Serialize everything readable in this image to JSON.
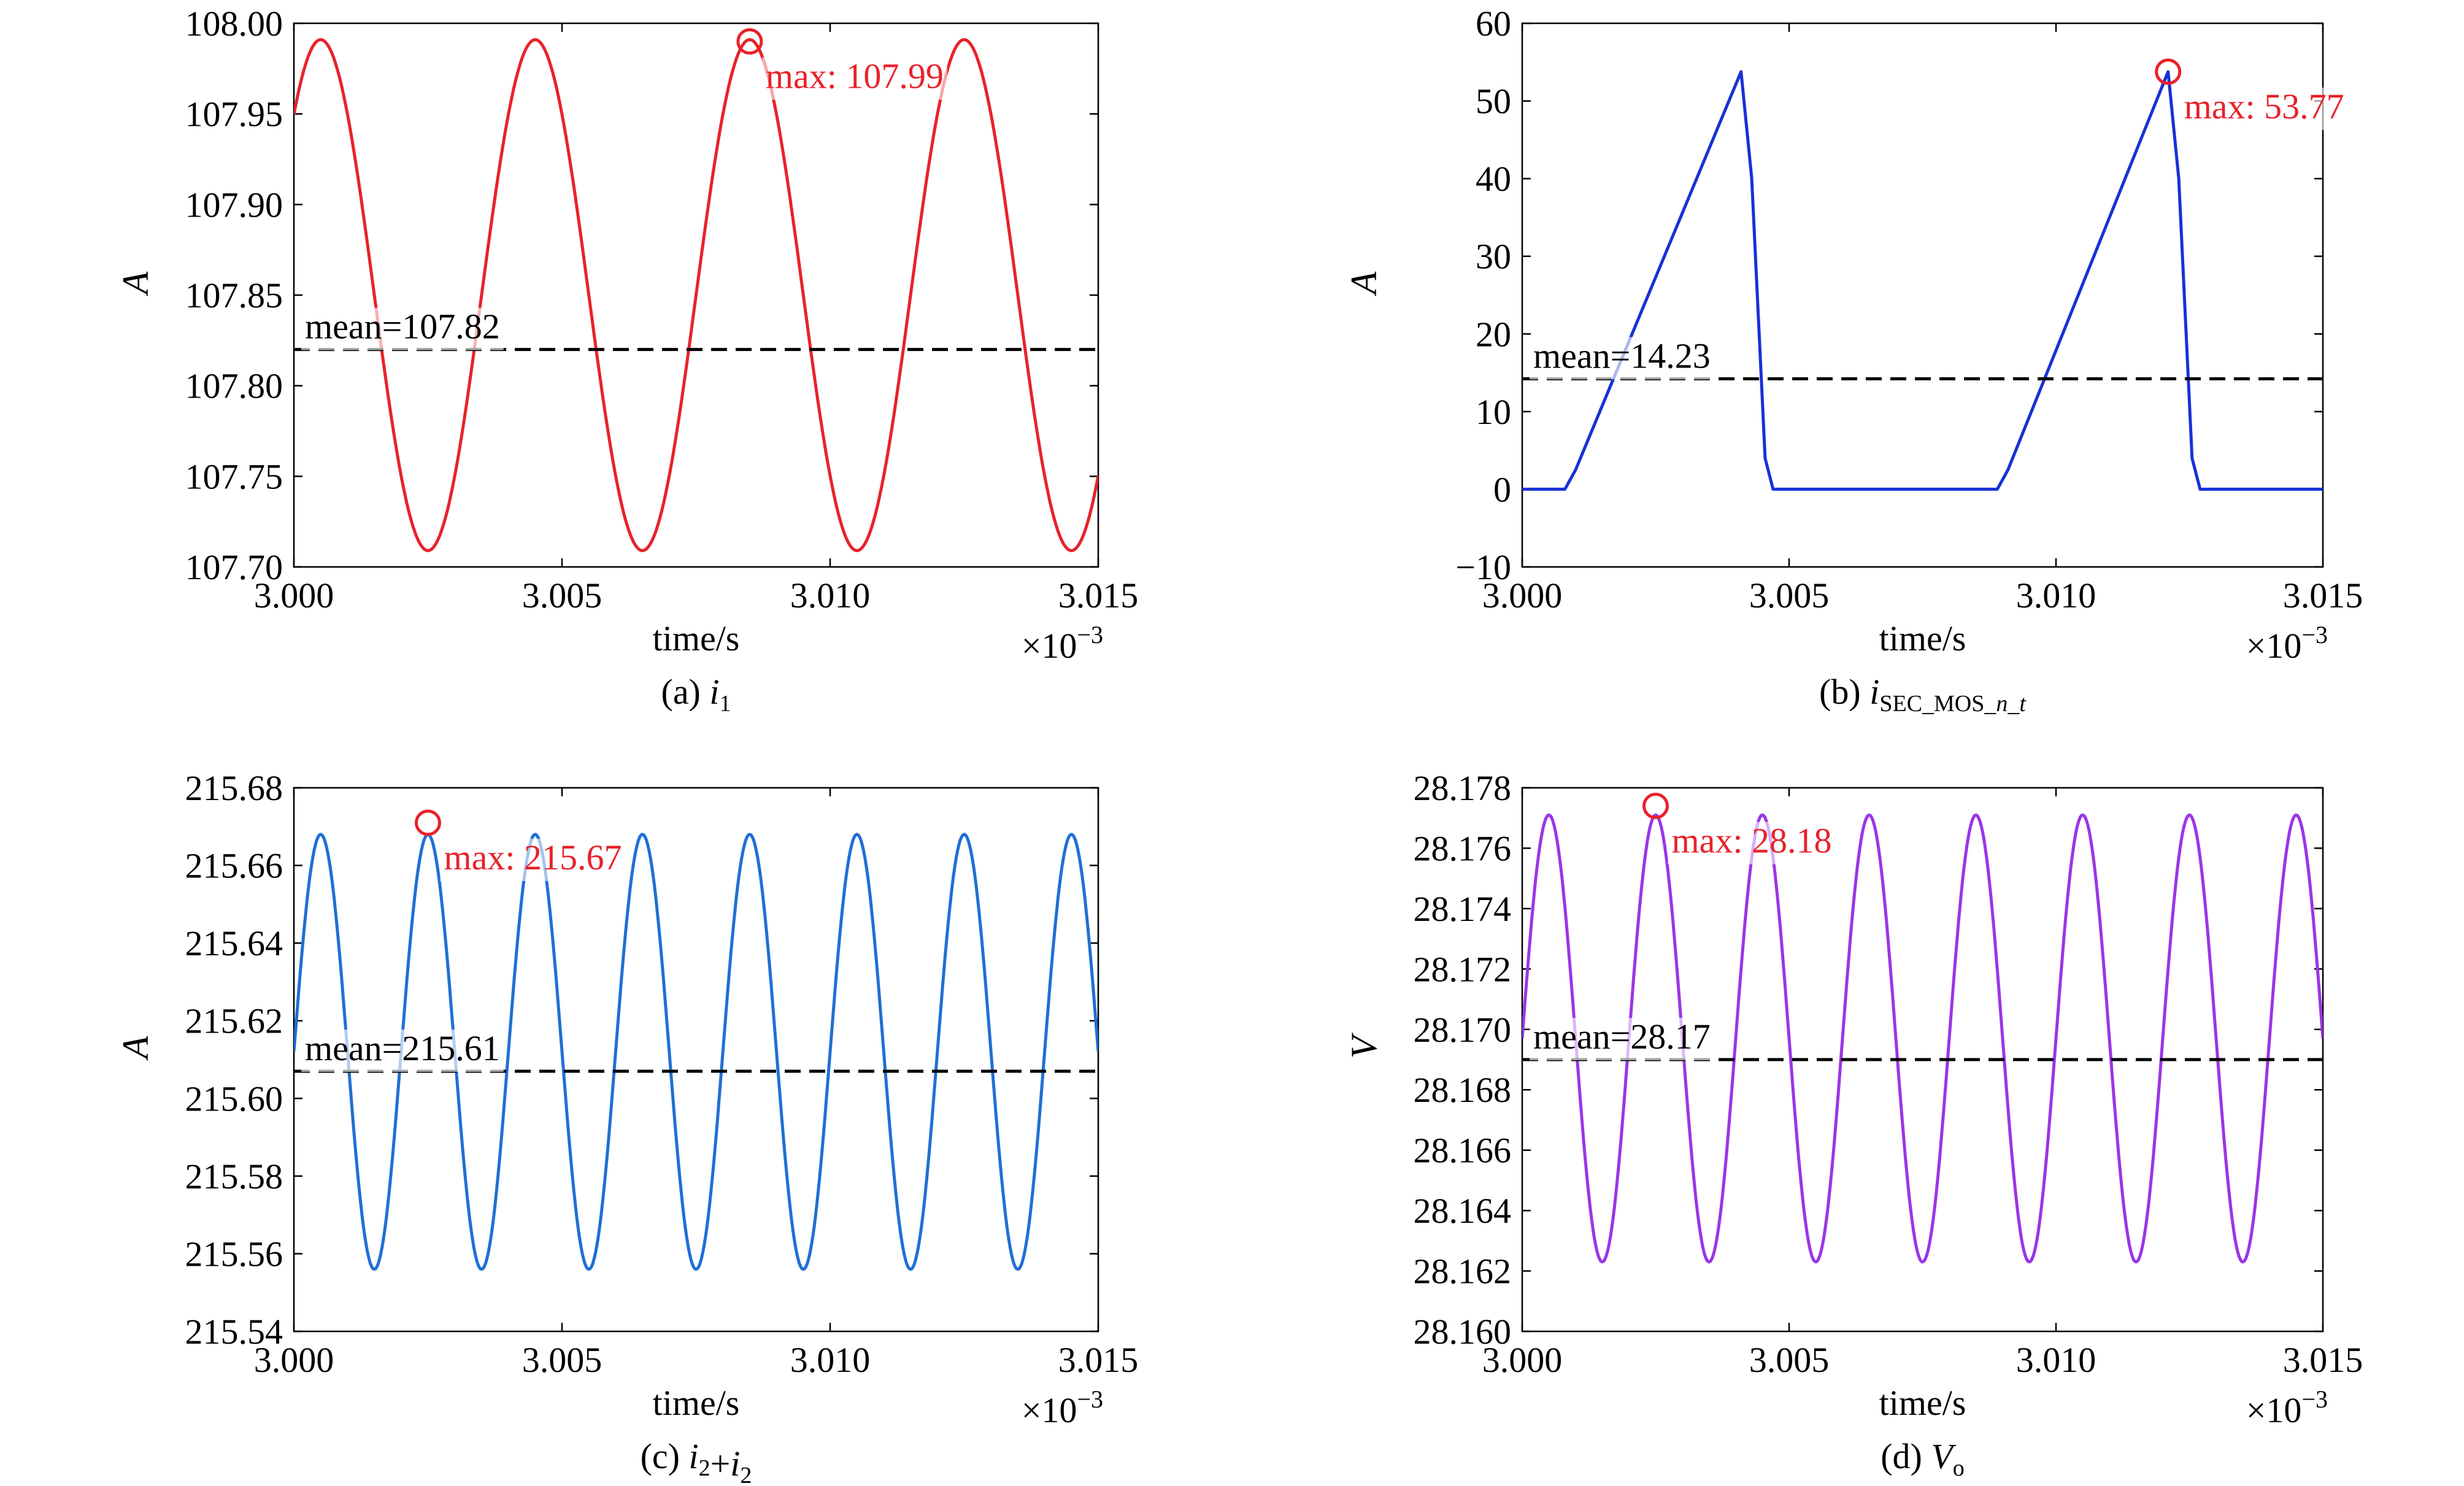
{
  "chart_data": [
    {
      "id": "a",
      "type": "line",
      "caption": {
        "prefix": "(a) ",
        "var": "i",
        "sub": "1",
        "extra": ""
      },
      "xlabel": "time/s",
      "x_multiplier": "×10",
      "x_exponent": "−3",
      "ylabel": "A",
      "xlim": [
        3.0,
        3.015
      ],
      "ylim": [
        107.7,
        108.0
      ],
      "xticks": [
        "3.000",
        "3.005",
        "3.010",
        "3.015"
      ],
      "yticks": [
        "107.70",
        "107.75",
        "107.80",
        "107.85",
        "107.90",
        "107.95",
        "108.00"
      ],
      "color": "#e8222a",
      "series": {
        "kind": "sine",
        "x_start": 3.0,
        "x_end": 3.015,
        "mean": 107.85,
        "amplitude": 0.141,
        "period": 0.004,
        "peak_at": 3.0005
      },
      "mean_value": 107.82,
      "mean_label": "mean=107.82",
      "max": {
        "x": 3.0085,
        "y": 107.99,
        "label": "max: 107.99"
      }
    },
    {
      "id": "b",
      "type": "line",
      "caption": {
        "prefix": "(b) ",
        "var": "i",
        "sub": "SEC_MOS_",
        "sub_italic": "n_t",
        "extra": ""
      },
      "xlabel": "time/s",
      "x_multiplier": "×10",
      "x_exponent": "−3",
      "ylabel": "A",
      "xlim": [
        3.0,
        3.015
      ],
      "ylim": [
        -10,
        60
      ],
      "xticks": [
        "3.000",
        "3.005",
        "3.010",
        "3.015"
      ],
      "yticks": [
        "−10",
        "0",
        "10",
        "20",
        "30",
        "40",
        "50",
        "60"
      ],
      "ytick_values": [
        -10,
        0,
        10,
        20,
        30,
        40,
        50,
        60
      ],
      "color": "#1632d6",
      "series": {
        "kind": "points",
        "x": [
          3.0,
          3.0008,
          3.001,
          3.0041,
          3.0043,
          3.00455,
          3.0047,
          3.0089,
          3.0091,
          3.0121,
          3.0123,
          3.01255,
          3.0127,
          3.015
        ],
        "y": [
          0,
          0,
          2.5,
          53.77,
          40,
          4,
          0,
          0,
          2.5,
          53.77,
          40,
          4,
          0,
          0
        ]
      },
      "mean_value": 14.23,
      "mean_label": "mean=14.23",
      "max": {
        "x": 3.0121,
        "y": 53.77,
        "label": "max: 53.77"
      }
    },
    {
      "id": "c",
      "type": "line",
      "caption": {
        "prefix": "(c) ",
        "var": "i",
        "sub": "2",
        "extra": "+",
        "var2": "i",
        "sub2": "2"
      },
      "xlabel": "time/s",
      "x_multiplier": "×10",
      "x_exponent": "−3",
      "ylabel": "A",
      "xlim": [
        3.0,
        3.015
      ],
      "ylim": [
        215.54,
        215.68
      ],
      "xticks": [
        "3.000",
        "3.005",
        "3.010",
        "3.015"
      ],
      "yticks": [
        "215.54",
        "215.56",
        "215.58",
        "215.60",
        "215.62",
        "215.64",
        "215.66",
        "215.68"
      ],
      "color": "#1f6fd6",
      "series": {
        "kind": "sine",
        "x_start": 3.0,
        "x_end": 3.015,
        "mean": 215.612,
        "amplitude": 0.056,
        "period": 0.002,
        "peak_at": 3.0005
      },
      "mean_value": 215.607,
      "mean_label": "mean=215.61",
      "max": {
        "x": 3.0025,
        "y": 215.671,
        "label": "max: 215.67"
      }
    },
    {
      "id": "d",
      "type": "line",
      "caption": {
        "prefix": "(d) ",
        "var": "V",
        "sub": "o",
        "extra": ""
      },
      "xlabel": "time/s",
      "x_multiplier": "×10",
      "x_exponent": "−3",
      "ylabel": "V",
      "xlim": [
        3.0,
        3.015
      ],
      "ylim": [
        28.16,
        28.178
      ],
      "xticks": [
        "3.000",
        "3.005",
        "3.010",
        "3.015"
      ],
      "yticks": [
        "28.160",
        "28.162",
        "28.164",
        "28.166",
        "28.168",
        "28.170",
        "28.172",
        "28.174",
        "28.176",
        "28.178"
      ],
      "color": "#9a35e8",
      "series": {
        "kind": "sine",
        "x_start": 3.0,
        "x_end": 3.015,
        "mean": 28.1697,
        "amplitude": 0.0074,
        "period": 0.002,
        "peak_at": 3.0005
      },
      "mean_value": 28.169,
      "mean_label": "mean=28.17",
      "max": {
        "x": 3.0025,
        "y": 28.1774,
        "label": "max: 28.18"
      }
    }
  ]
}
